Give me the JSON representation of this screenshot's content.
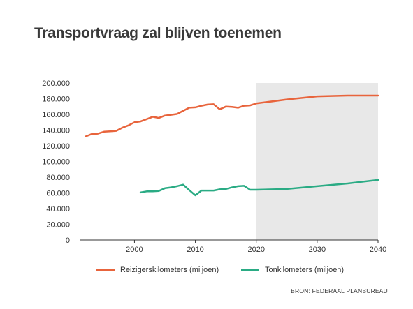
{
  "chart_data": {
    "type": "line",
    "title": "Transportvraag zal blijven toenemen",
    "xlabel": "",
    "ylabel": "",
    "xlim": [
      1991,
      2040
    ],
    "ylim": [
      0,
      200000
    ],
    "x_ticks": [
      2000,
      2010,
      2020,
      2030,
      2040
    ],
    "x_tick_labels": [
      "2000",
      "2010",
      "2020",
      "2030",
      "2040"
    ],
    "y_ticks": [
      0,
      20000,
      40000,
      60000,
      80000,
      100000,
      120000,
      140000,
      160000,
      180000,
      200000
    ],
    "y_tick_labels": [
      "0",
      "20.000",
      "40.000",
      "60.000",
      "80.000",
      "100.000",
      "120.000",
      "140.000",
      "160.000",
      "180.000",
      "200.000"
    ],
    "shaded_region": {
      "from": 2020,
      "to": 2040,
      "color": "#e8e8e8"
    },
    "grid": false,
    "legend_position": "bottom",
    "series": [
      {
        "name": "Reizigerskilometers (miljoen)",
        "color": "#e8643c",
        "x": [
          1992,
          1993,
          1994,
          1995,
          1996,
          1997,
          1998,
          1999,
          2000,
          2001,
          2002,
          2003,
          2004,
          2005,
          2006,
          2007,
          2008,
          2009,
          2010,
          2011,
          2012,
          2013,
          2014,
          2015,
          2016,
          2017,
          2018,
          2019,
          2020,
          2025,
          2030,
          2035,
          2040
        ],
        "values": [
          132000,
          135000,
          135500,
          138000,
          138500,
          139000,
          143000,
          146000,
          150000,
          151000,
          154000,
          157000,
          155500,
          158500,
          159500,
          160500,
          164500,
          168500,
          169000,
          171000,
          172500,
          173000,
          166500,
          170000,
          169500,
          168500,
          171000,
          171500,
          174000,
          179000,
          183000,
          184000,
          184000
        ]
      },
      {
        "name": "Tonkilometers (miljoen)",
        "color": "#2aab84",
        "x": [
          2001,
          2002,
          2003,
          2004,
          2005,
          2006,
          2007,
          2008,
          2009,
          2010,
          2011,
          2012,
          2013,
          2014,
          2015,
          2016,
          2017,
          2018,
          2019,
          2020,
          2025,
          2030,
          2035,
          2040
        ],
        "values": [
          60500,
          62000,
          62000,
          62500,
          66000,
          67000,
          68500,
          70500,
          63500,
          57000,
          63000,
          63000,
          63000,
          64500,
          65000,
          67000,
          68500,
          69000,
          64000,
          64000,
          65000,
          68500,
          72000,
          76500
        ]
      }
    ]
  },
  "source": "BRON: FEDERAAL PLANBUREAU"
}
